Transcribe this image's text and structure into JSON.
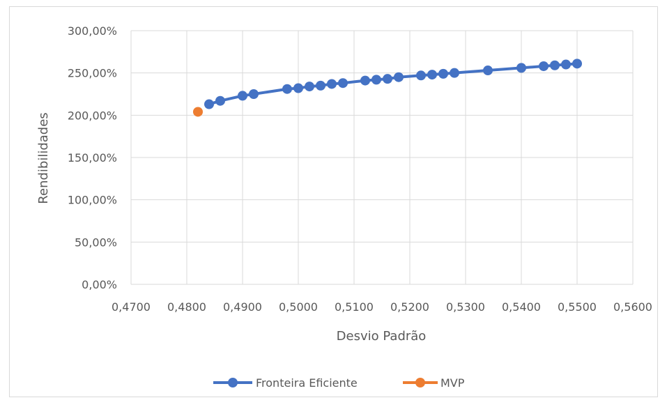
{
  "chart_data": {
    "type": "scatter",
    "title": "",
    "xlabel": "Desvio Padrão",
    "ylabel": "Rendibilidades",
    "xlim": [
      0.47,
      0.56
    ],
    "ylim": [
      0,
      3.0
    ],
    "x_ticks": [
      "0,4700",
      "0,4800",
      "0,4900",
      "0,5000",
      "0,5100",
      "0,5200",
      "0,5300",
      "0,5400",
      "0,5500",
      "0,5600"
    ],
    "y_ticks": [
      "0,00%",
      "50,00%",
      "100,00%",
      "150,00%",
      "200,00%",
      "250,00%",
      "300,00%"
    ],
    "grid": {
      "x": true,
      "y": true
    },
    "legend_position": "bottom",
    "series": [
      {
        "name": "Fronteira Eficiente",
        "color": "#4472C4",
        "line": true,
        "x": [
          0.484,
          0.486,
          0.49,
          0.492,
          0.498,
          0.5,
          0.502,
          0.504,
          0.506,
          0.508,
          0.512,
          0.514,
          0.516,
          0.518,
          0.522,
          0.524,
          0.526,
          0.528,
          0.534,
          0.54,
          0.544,
          0.546,
          0.548,
          0.55
        ],
        "y": [
          2.13,
          2.17,
          2.23,
          2.25,
          2.31,
          2.32,
          2.34,
          2.35,
          2.37,
          2.38,
          2.41,
          2.42,
          2.43,
          2.45,
          2.47,
          2.48,
          2.49,
          2.5,
          2.53,
          2.56,
          2.58,
          2.59,
          2.6,
          2.61
        ]
      },
      {
        "name": "MVP",
        "color": "#ED7D31",
        "line": false,
        "x": [
          0.482
        ],
        "y": [
          2.04
        ]
      }
    ]
  }
}
